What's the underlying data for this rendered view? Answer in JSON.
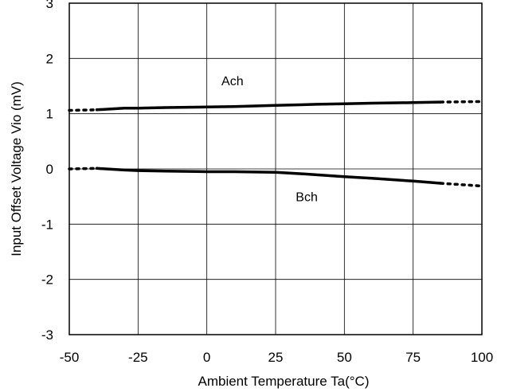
{
  "chart_data": {
    "type": "line",
    "title": "",
    "xlabel": "Ambient Temperature Ta(°C)",
    "ylabel": "Input Offset Voltage Vio (mV)",
    "xlim": [
      -50,
      100
    ],
    "ylim": [
      -3,
      3
    ],
    "x_ticks": [
      -50,
      -25,
      0,
      25,
      50,
      75,
      100
    ],
    "y_ticks": [
      -3,
      -2,
      -1,
      0,
      1,
      2,
      3
    ],
    "x_tick_labels": [
      "-50",
      "-25",
      "0",
      "25",
      "50",
      "75",
      "100"
    ],
    "y_tick_labels": [
      "-3",
      "-2",
      "-1",
      "0",
      "1",
      "2",
      "3"
    ],
    "grid": true,
    "legend": "none (series labeled inline)",
    "series": [
      {
        "name": "Ach",
        "color": "#000000",
        "dotted_x": [
          [
            -50,
            -40
          ],
          [
            85,
            100
          ]
        ],
        "points": [
          {
            "x": -50,
            "y": 1.06
          },
          {
            "x": -40,
            "y": 1.07
          },
          {
            "x": -30,
            "y": 1.1
          },
          {
            "x": -25,
            "y": 1.1
          },
          {
            "x": -15,
            "y": 1.11
          },
          {
            "x": 0,
            "y": 1.12
          },
          {
            "x": 10,
            "y": 1.13
          },
          {
            "x": 25,
            "y": 1.15
          },
          {
            "x": 40,
            "y": 1.17
          },
          {
            "x": 50,
            "y": 1.18
          },
          {
            "x": 60,
            "y": 1.19
          },
          {
            "x": 75,
            "y": 1.2
          },
          {
            "x": 85,
            "y": 1.21
          },
          {
            "x": 100,
            "y": 1.22
          }
        ]
      },
      {
        "name": "Bch",
        "color": "#000000",
        "dotted_x": [
          [
            -50,
            -40
          ],
          [
            85,
            100
          ]
        ],
        "points": [
          {
            "x": -50,
            "y": 0.0
          },
          {
            "x": -40,
            "y": 0.01
          },
          {
            "x": -30,
            "y": -0.02
          },
          {
            "x": -25,
            "y": -0.03
          },
          {
            "x": -15,
            "y": -0.04
          },
          {
            "x": 0,
            "y": -0.05
          },
          {
            "x": 10,
            "y": -0.05
          },
          {
            "x": 25,
            "y": -0.06
          },
          {
            "x": 35,
            "y": -0.09
          },
          {
            "x": 50,
            "y": -0.14
          },
          {
            "x": 60,
            "y": -0.17
          },
          {
            "x": 75,
            "y": -0.22
          },
          {
            "x": 85,
            "y": -0.26
          },
          {
            "x": 100,
            "y": -0.31
          }
        ]
      }
    ],
    "annotations": [
      {
        "text": "Ach",
        "x": 3,
        "y": 1.6
      },
      {
        "text": "Bch",
        "x": 30,
        "y": -0.5
      }
    ]
  }
}
